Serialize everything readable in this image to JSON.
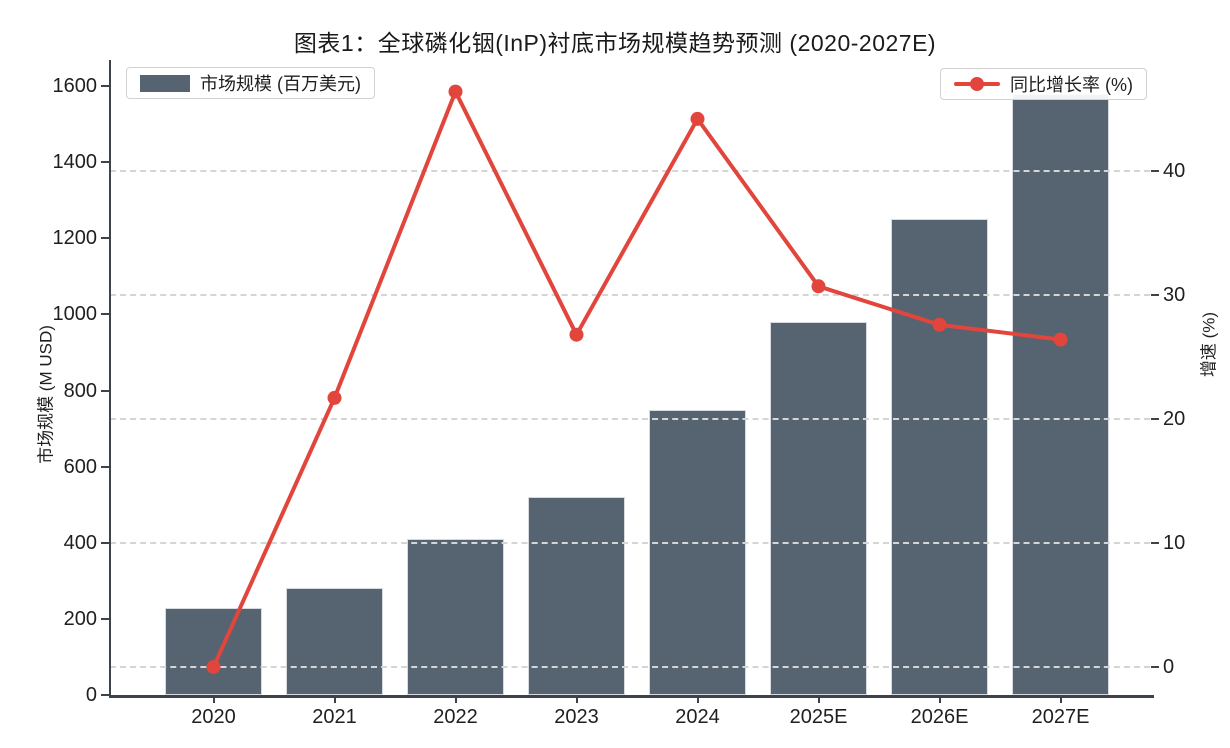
{
  "title": "图表1：全球磷化铟(InP)衬底市场规模趋势预测 (2020-2027E)",
  "legend": {
    "bar_label": "市场规模 (百万美元)",
    "line_label": "同比增长率 (%)"
  },
  "axes": {
    "left": {
      "label": "市场规模 (M USD)",
      "ticks": [
        0,
        200,
        400,
        600,
        800,
        1000,
        1200,
        1400,
        1600
      ]
    },
    "right": {
      "label": "增速 (%)",
      "ticks": [
        0,
        10,
        20,
        30,
        40
      ]
    },
    "x": {
      "labels": [
        "2020",
        "2021",
        "2022",
        "2023",
        "2024",
        "2025E",
        "2026E",
        "2027E"
      ]
    }
  },
  "colors": {
    "bar": "#566371",
    "line": "#e1453c",
    "grid": "#d5d5d5",
    "spine": "#3d434a",
    "text": "#1f1f1f"
  },
  "chart_data": {
    "type": "bar+line",
    "categories": [
      "2020",
      "2021",
      "2022",
      "2023",
      "2024",
      "2025E",
      "2026E",
      "2027E"
    ],
    "series": [
      {
        "name": "市场规模 (百万美元)",
        "type": "bar",
        "axis": "left",
        "values": [
          230,
          280,
          410,
          520,
          750,
          980,
          1250,
          1580
        ]
      },
      {
        "name": "同比增长率 (%)",
        "type": "line",
        "axis": "right",
        "values": [
          0,
          21.7,
          46.4,
          26.8,
          44.2,
          30.7,
          27.6,
          26.4
        ]
      }
    ],
    "title": "图表1：全球磷化铟(InP)衬底市场规模趋势预测 (2020-2027E)",
    "xlabel": "",
    "ylabel_left": "市场规模 (M USD)",
    "ylabel_right": "增速 (%)",
    "ylim_left": [
      0,
      1600
    ],
    "ylim_right": [
      0,
      49
    ],
    "grid": "horizontal dashed lines at right-axis ticks 0,10,20,30,40",
    "legend_position": "upper-left (bar series) and upper-right (line series), inside plot"
  }
}
